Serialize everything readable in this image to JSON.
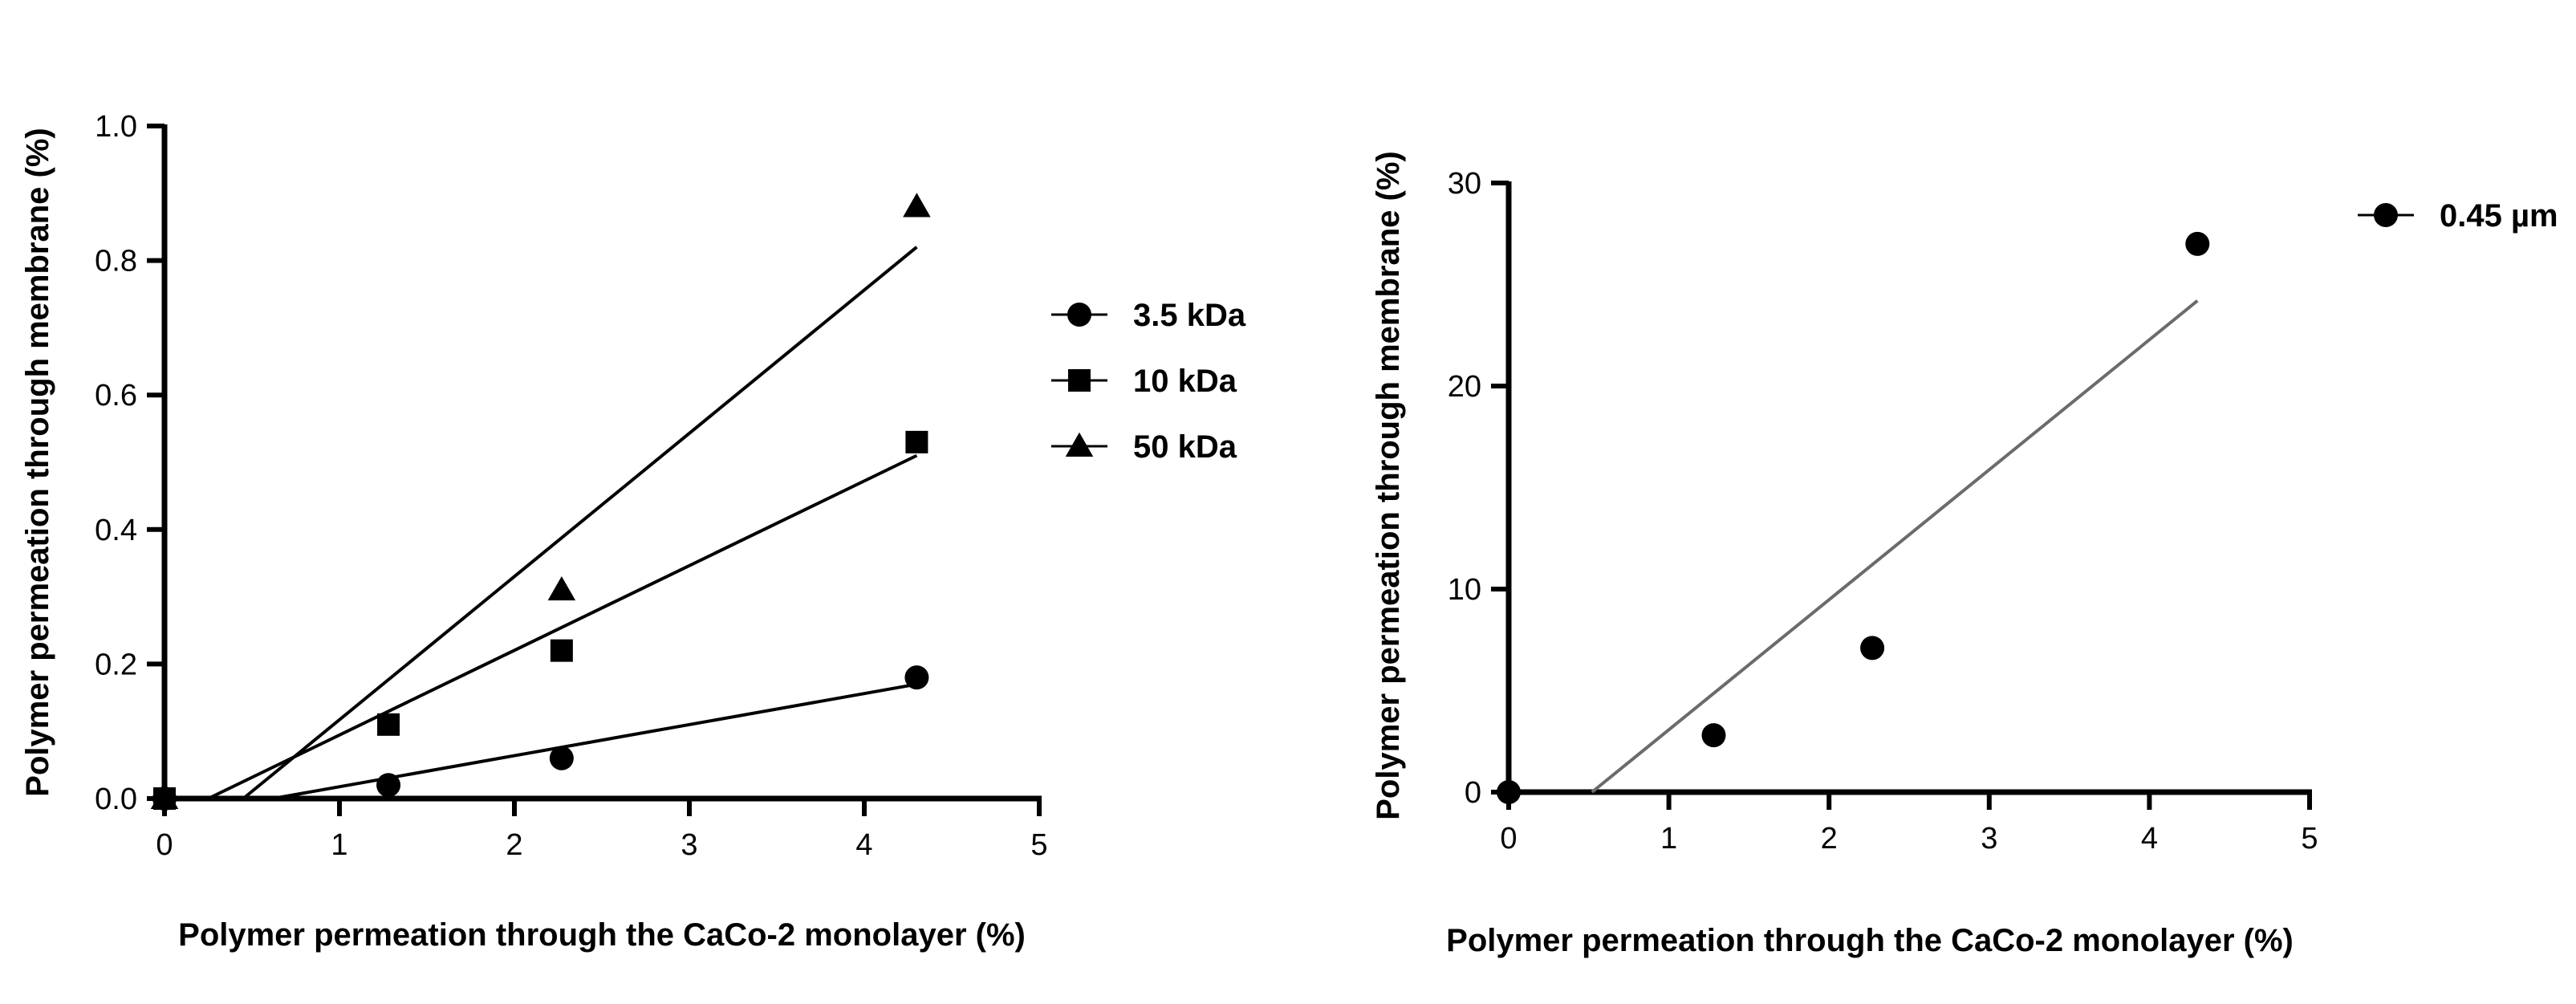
{
  "chart_data": [
    {
      "type": "scatter",
      "xlabel": "Polymer permeation through the CaCo-2 monolayer (%)",
      "ylabel": "Polymer permeation through membrane (%)",
      "xlim": [
        0,
        5
      ],
      "ylim": [
        0,
        1.0
      ],
      "x_ticks": [
        "0",
        "1",
        "2",
        "3",
        "4",
        "5"
      ],
      "y_ticks": [
        "0.0",
        "0.2",
        "0.4",
        "0.6",
        "0.8",
        "1.0"
      ],
      "legend_position": "right",
      "series": [
        {
          "name": "3.5 kDa",
          "marker": "circle",
          "color": "#000000",
          "x": [
            0,
            1.28,
            2.27,
            4.3
          ],
          "y": [
            0,
            0.02,
            0.06,
            0.18
          ],
          "fit": {
            "x": [
              0.62,
              4.3
            ],
            "y": [
              0,
              0.17
            ]
          }
        },
        {
          "name": "10 kDa",
          "marker": "square",
          "color": "#000000",
          "x": [
            0,
            1.28,
            2.27,
            4.3
          ],
          "y": [
            0,
            0.11,
            0.22,
            0.53
          ],
          "fit": {
            "x": [
              0.25,
              4.3
            ],
            "y": [
              0,
              0.51
            ]
          }
        },
        {
          "name": "50 kDa",
          "marker": "triangle",
          "color": "#000000",
          "x": [
            0,
            2.27,
            4.3
          ],
          "y": [
            0,
            0.31,
            0.88
          ],
          "fit": {
            "x": [
              0.45,
              4.3
            ],
            "y": [
              0,
              0.82
            ]
          }
        }
      ]
    },
    {
      "type": "scatter",
      "xlabel": "Polymer permeation through the CaCo-2 monolayer (%)",
      "ylabel": "Polymer permeation through membrane (%)",
      "xlim": [
        0,
        5
      ],
      "ylim": [
        0,
        30
      ],
      "x_ticks": [
        "0",
        "1",
        "2",
        "3",
        "4",
        "5"
      ],
      "y_ticks": [
        "0",
        "10",
        "20",
        "30"
      ],
      "legend_position": "top-right",
      "series": [
        {
          "name": "0.45 µm",
          "marker": "circle",
          "color": "#000000",
          "x": [
            0,
            1.28,
            2.27,
            4.3
          ],
          "y": [
            0,
            2.8,
            7.1,
            27.0
          ],
          "fit": {
            "x": [
              0.52,
              4.3
            ],
            "y": [
              0,
              24.2
            ]
          }
        }
      ]
    }
  ]
}
